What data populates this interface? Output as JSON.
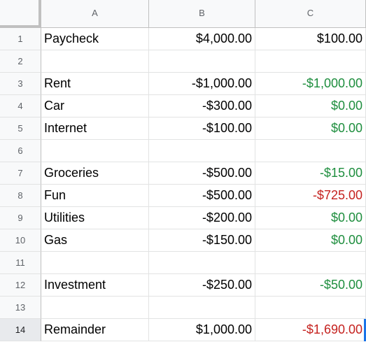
{
  "columns": [
    "A",
    "B",
    "C"
  ],
  "rows": [
    {
      "num": "1",
      "a": "Paycheck",
      "b": "$4,000.00",
      "c": "$100.00",
      "c_color": "black"
    },
    {
      "num": "2",
      "a": "",
      "b": "",
      "c": "",
      "c_color": "black"
    },
    {
      "num": "3",
      "a": "Rent",
      "b": "-$1,000.00",
      "c": "-$1,000.00",
      "c_color": "green"
    },
    {
      "num": "4",
      "a": "Car",
      "b": "-$300.00",
      "c": "$0.00",
      "c_color": "green"
    },
    {
      "num": "5",
      "a": "Internet",
      "b": "-$100.00",
      "c": "$0.00",
      "c_color": "green"
    },
    {
      "num": "6",
      "a": "",
      "b": "",
      "c": "",
      "c_color": "black"
    },
    {
      "num": "7",
      "a": "Groceries",
      "b": "-$500.00",
      "c": "-$15.00",
      "c_color": "green"
    },
    {
      "num": "8",
      "a": "Fun",
      "b": "-$500.00",
      "c": "-$725.00",
      "c_color": "red"
    },
    {
      "num": "9",
      "a": "Utilities",
      "b": "-$200.00",
      "c": "$0.00",
      "c_color": "green"
    },
    {
      "num": "10",
      "a": "Gas",
      "b": "-$150.00",
      "c": "$0.00",
      "c_color": "green"
    },
    {
      "num": "11",
      "a": "",
      "b": "",
      "c": "",
      "c_color": "black"
    },
    {
      "num": "12",
      "a": "Investment",
      "b": "-$250.00",
      "c": "-$50.00",
      "c_color": "green"
    },
    {
      "num": "13",
      "a": "",
      "b": "",
      "c": "",
      "c_color": "black"
    },
    {
      "num": "14",
      "a": "Remainder",
      "b": "$1,000.00",
      "c": "-$1,690.00",
      "c_color": "red"
    }
  ],
  "selected_row": "14",
  "colors": {
    "positive_change": "#1e8e3e",
    "negative_change": "#c5221f",
    "selection": "#1a73e8",
    "header_bg": "#f8f9fa"
  }
}
